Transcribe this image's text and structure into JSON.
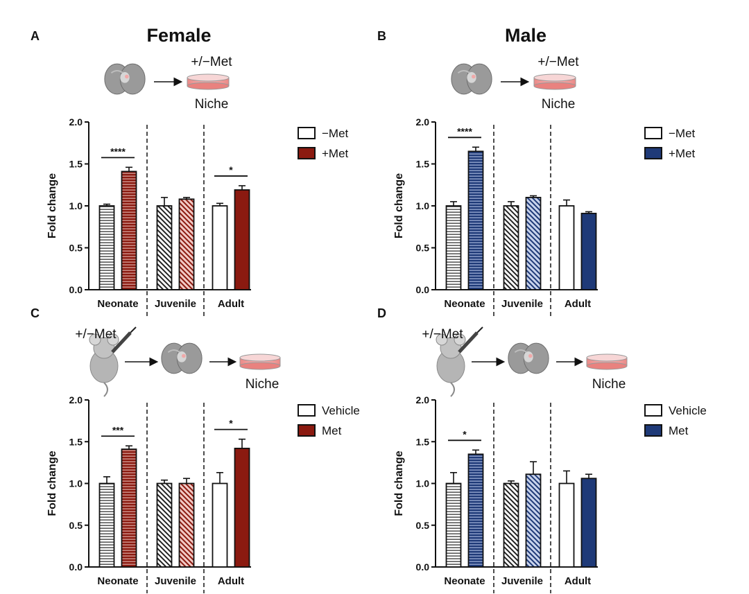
{
  "panels": [
    {
      "letter": "A",
      "title": "Female",
      "diagram": {
        "type": "slice",
        "labels": [
          "+/−Met",
          "Niche"
        ]
      },
      "legend": [
        "−Met",
        "+Met"
      ],
      "colors": {
        "treated": "#8b1a10"
      }
    },
    {
      "letter": "B",
      "title": "Male",
      "diagram": {
        "type": "slice",
        "labels": [
          "+/−Met",
          "Niche"
        ]
      },
      "legend": [
        "−Met",
        "+Met"
      ],
      "colors": {
        "treated": "#1f3a78"
      }
    },
    {
      "letter": "C",
      "title": "",
      "diagram": {
        "type": "mouse",
        "labels": [
          "+/−Met",
          "Niche"
        ]
      },
      "legend": [
        "Vehicle",
        "Met"
      ],
      "colors": {
        "treated": "#8b1a10"
      }
    },
    {
      "letter": "D",
      "title": "",
      "diagram": {
        "type": "mouse",
        "labels": [
          "+/−Met",
          "Niche"
        ]
      },
      "legend": [
        "Vehicle",
        "Met"
      ],
      "colors": {
        "treated": "#1f3a78"
      }
    }
  ],
  "chart_data": [
    {
      "type": "bar",
      "panel": "A",
      "categories": [
        "Neonate",
        "Juvenile",
        "Adult"
      ],
      "ylabel": "Fold change",
      "ylim": [
        0,
        2.0
      ],
      "yticks": [
        "0.0",
        "0.5",
        "1.0",
        "1.5",
        "2.0"
      ],
      "series": [
        {
          "name": "−Met",
          "values": [
            1.0,
            1.0,
            1.0
          ],
          "errors": [
            0.02,
            0.1,
            0.03
          ]
        },
        {
          "name": "+Met",
          "values": [
            1.41,
            1.08,
            1.19
          ],
          "errors": [
            0.05,
            0.02,
            0.05
          ]
        }
      ],
      "significance": [
        {
          "category": "Neonate",
          "label": "****"
        },
        {
          "category": "Adult",
          "label": "*"
        }
      ]
    },
    {
      "type": "bar",
      "panel": "B",
      "categories": [
        "Neonate",
        "Juvenile",
        "Adult"
      ],
      "ylabel": "Fold change",
      "ylim": [
        0,
        2.0
      ],
      "yticks": [
        "0.0",
        "0.5",
        "1.0",
        "1.5",
        "2.0"
      ],
      "series": [
        {
          "name": "−Met",
          "values": [
            1.0,
            1.0,
            1.0
          ],
          "errors": [
            0.05,
            0.05,
            0.07
          ]
        },
        {
          "name": "+Met",
          "values": [
            1.65,
            1.1,
            0.91
          ],
          "errors": [
            0.05,
            0.02,
            0.02
          ]
        }
      ],
      "significance": [
        {
          "category": "Neonate",
          "label": "****"
        }
      ]
    },
    {
      "type": "bar",
      "panel": "C",
      "categories": [
        "Neonate",
        "Juvenile",
        "Adult"
      ],
      "ylabel": "Fold change",
      "ylim": [
        0,
        2.0
      ],
      "yticks": [
        "0.0",
        "0.5",
        "1.0",
        "1.5",
        "2.0"
      ],
      "series": [
        {
          "name": "Vehicle",
          "values": [
            1.0,
            1.0,
            1.0
          ],
          "errors": [
            0.08,
            0.04,
            0.13
          ]
        },
        {
          "name": "Met",
          "values": [
            1.41,
            1.0,
            1.42
          ],
          "errors": [
            0.04,
            0.06,
            0.11
          ]
        }
      ],
      "significance": [
        {
          "category": "Neonate",
          "label": "***"
        },
        {
          "category": "Adult",
          "label": "*"
        }
      ]
    },
    {
      "type": "bar",
      "panel": "D",
      "categories": [
        "Neonate",
        "Juvenile",
        "Adult"
      ],
      "ylabel": "Fold change",
      "ylim": [
        0,
        2.0
      ],
      "yticks": [
        "0.0",
        "0.5",
        "1.0",
        "1.5",
        "2.0"
      ],
      "series": [
        {
          "name": "Vehicle",
          "values": [
            1.0,
            1.0,
            1.0
          ],
          "errors": [
            0.13,
            0.03,
            0.15
          ]
        },
        {
          "name": "Met",
          "values": [
            1.35,
            1.11,
            1.06
          ],
          "errors": [
            0.05,
            0.15,
            0.05
          ]
        }
      ],
      "significance": [
        {
          "category": "Neonate",
          "label": "*"
        }
      ]
    }
  ]
}
